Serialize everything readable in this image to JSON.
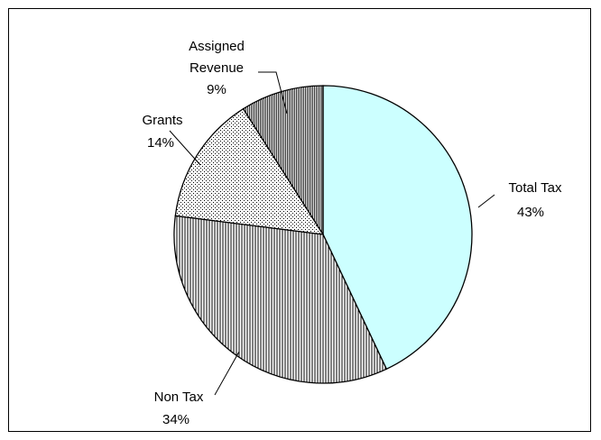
{
  "chart_data": {
    "type": "pie",
    "title": "",
    "slices": [
      {
        "label": "Total Tax",
        "value": 43,
        "value_label": "43%",
        "fill": "#ccffff",
        "pattern": "solid"
      },
      {
        "label": "Non Tax",
        "value": 34,
        "value_label": "34%",
        "fill": "#ffffff",
        "pattern": "vertical-lines"
      },
      {
        "label": "Grants",
        "value": 14,
        "value_label": "14%",
        "fill": "#ffffff",
        "pattern": "dots"
      },
      {
        "label": "Assigned Revenue",
        "value": 9,
        "value_label": "9%",
        "fill": "#ffffff",
        "pattern": "dense-lines"
      }
    ],
    "start_angle_deg": 0,
    "direction": "clockwise",
    "legend": "none",
    "data_labels": "outside-with-leader-lines"
  }
}
